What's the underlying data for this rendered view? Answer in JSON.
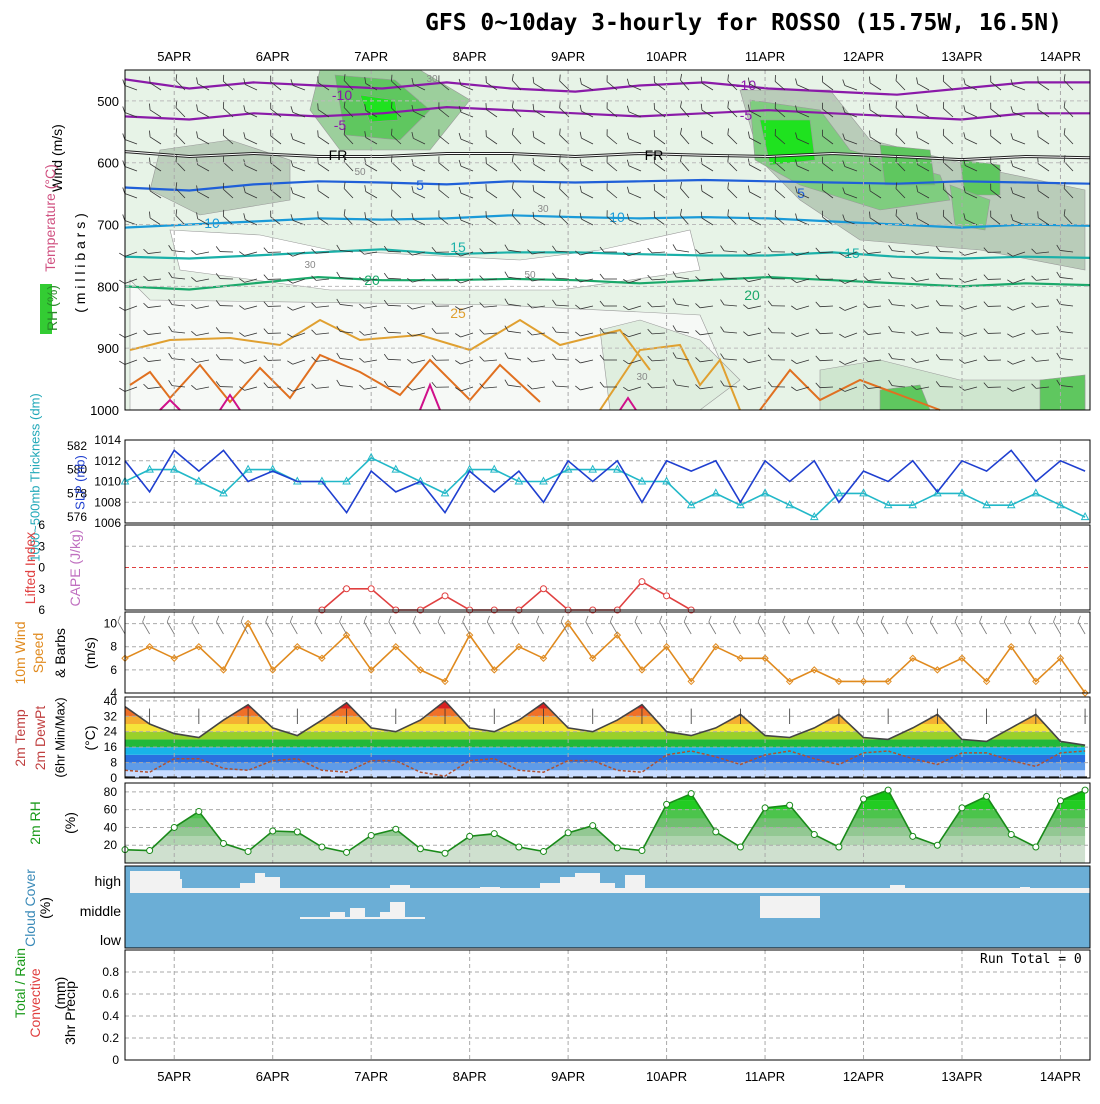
{
  "title": "GFS 0~10day 3-hourly for ROSSO (15.75W, 16.5N)",
  "run_total_text": "Run Total = 0",
  "date_labels": [
    "5APR",
    "6APR",
    "7APR",
    "8APR",
    "9APR",
    "10APR",
    "11APR",
    "12APR",
    "13APR",
    "14APR"
  ],
  "panel_labels": {
    "upper_wind": "Wind (m/s)",
    "upper_temp": "Temperature (°C)",
    "upper_rh": "RH (%)",
    "upper_pressure": "( m i l l i b a r s )",
    "thick": "1000~500mb Thickness (dm)",
    "slp": "SLP (mb)",
    "li": "Lifted Index",
    "cape": "CAPE (J/kg)",
    "wind10_a": "10m Wind",
    "wind10_b": "Speed",
    "wind10_c": "& Barbs",
    "wind10_unit": "(m/s)",
    "temp_a": "2m Temp",
    "temp_b": "2m DewPt",
    "temp_c": "(6hr Min/Max)",
    "temp_unit": "(°C)",
    "rh2": "2m RH",
    "rh2_unit": "(%)",
    "cloud": "Cloud Cover",
    "cloud_unit": "(%)",
    "precip_a": "Total / Rain",
    "precip_b": "Convective",
    "precip_c": "3hr Precip",
    "precip_unit": "(mm)"
  },
  "cloud_levels": [
    "high",
    "middle",
    "low"
  ],
  "contour_labels": {
    "temp": [
      "-10",
      "-5",
      "FR",
      "5",
      "10",
      "15",
      "20",
      "25",
      "-10",
      "-5",
      "FR",
      "5",
      "10",
      "15",
      "20"
    ],
    "rh": [
      "30",
      "50",
      "30",
      "30",
      "50",
      "30"
    ]
  },
  "colors": {
    "rh_green": "#33cc33",
    "slp_line": "#1f3fd0",
    "thick_line": "#22b8c8",
    "wind_line": "#e08a1e",
    "rh2_line": "#1a8a1a",
    "cloud_bg": "#6baed6",
    "cloud_fill": "#f2f2f2",
    "li_line": "#e04040"
  },
  "chart_data": [
    {
      "type": "heatmap",
      "name": "upper-air cross section",
      "ylabel": "( m i l l i b a r s )",
      "yticks": [
        500,
        600,
        700,
        800,
        900,
        1000
      ],
      "ylim": [
        450,
        1000
      ],
      "temp_contours": [
        {
          "label": "-10",
          "pressure": [
            465,
            480,
            470,
            475,
            480,
            470,
            480,
            485,
            475,
            470,
            480,
            485,
            490,
            480,
            470,
            470
          ]
        },
        {
          "label": "-5",
          "pressure": [
            525,
            530,
            520,
            525,
            520,
            510,
            515,
            520,
            525,
            520,
            515,
            520,
            525,
            530,
            520,
            520
          ]
        },
        {
          "label": "FR",
          "pressure": [
            582,
            590,
            585,
            590,
            590,
            585,
            585,
            590,
            585,
            588,
            590,
            585,
            590,
            595,
            590,
            592
          ]
        },
        {
          "label": "5",
          "pressure": [
            640,
            645,
            635,
            630,
            632,
            635,
            630,
            632,
            630,
            628,
            630,
            632,
            634,
            630,
            632,
            634
          ]
        },
        {
          "label": "10",
          "pressure": [
            705,
            700,
            695,
            690,
            692,
            690,
            685,
            688,
            690,
            688,
            690,
            695,
            700,
            705,
            700,
            702
          ]
        },
        {
          "label": "15",
          "pressure": [
            752,
            755,
            750,
            745,
            740,
            748,
            745,
            745,
            748,
            750,
            750,
            745,
            752,
            755,
            752,
            754
          ]
        },
        {
          "label": "20",
          "pressure": [
            800,
            805,
            795,
            785,
            790,
            790,
            788,
            790,
            795,
            790,
            785,
            790,
            795,
            800,
            795,
            798
          ]
        }
      ]
    },
    {
      "type": "line",
      "name": "thickness and SLP",
      "x_days": [
        4.5,
        4.75,
        5.0,
        5.25,
        5.5,
        5.75,
        6.0,
        6.25,
        6.5,
        6.75,
        7.0,
        7.25,
        7.5,
        7.75,
        8.0,
        8.25,
        8.5,
        8.75,
        9.0,
        9.25,
        9.5,
        9.75,
        10.0,
        10.25,
        10.5,
        10.75,
        11.0,
        11.25,
        11.5,
        11.75,
        12.0,
        12.25,
        12.5,
        12.75,
        13.0,
        13.25,
        13.5,
        13.75,
        14.0,
        14.25
      ],
      "series": [
        {
          "name": "SLP (mb)",
          "axis": "right",
          "values": [
            1012,
            1009,
            1013,
            1011,
            1013,
            1010,
            1011,
            1010,
            1010,
            1007,
            1011,
            1009,
            1010,
            1007,
            1011,
            1009,
            1011,
            1008,
            1012,
            1010,
            1012,
            1008,
            1012,
            1011,
            1012,
            1008,
            1012,
            1010,
            1012,
            1008,
            1011,
            1010,
            1012,
            1009,
            1012,
            1011,
            1013,
            1010,
            1012,
            1011
          ]
        },
        {
          "name": "1000~500mb Thickness (dm)",
          "axis": "left",
          "values": [
            579,
            580,
            580,
            579,
            578,
            580,
            580,
            579,
            579,
            579,
            581,
            580,
            579,
            578,
            580,
            580,
            579,
            579,
            580,
            580,
            580,
            579,
            579,
            577,
            578,
            577,
            578,
            577,
            576,
            578,
            578,
            577,
            577,
            578,
            578,
            577,
            577,
            578,
            577,
            576
          ]
        }
      ],
      "yticks_left": [
        576,
        578,
        580,
        582
      ],
      "yticks_right": [
        1006,
        1008,
        1010,
        1012,
        1014
      ]
    },
    {
      "type": "line",
      "name": "lifted index and CAPE",
      "ylabel": "Lifted Index",
      "yticks": [
        -6,
        -3,
        0,
        3,
        6
      ],
      "ylim": [
        -6,
        6
      ],
      "series": [
        {
          "name": "Lifted Index",
          "x_days": [
            6.5,
            6.75,
            7.0,
            7.25,
            7.5,
            7.75,
            8.0,
            8.25,
            8.5,
            8.75,
            9.0,
            9.25,
            9.5,
            9.75,
            10.0,
            10.25
          ],
          "values": [
            6,
            3,
            3,
            6,
            6,
            4,
            6,
            6,
            6,
            3,
            6,
            6,
            6,
            2,
            4,
            6
          ]
        }
      ]
    },
    {
      "type": "line",
      "name": "10m wind speed",
      "ylabel": "(m/s)",
      "yticks": [
        4,
        6,
        8,
        10
      ],
      "ylim": [
        4,
        11
      ],
      "x_days": [
        4.5,
        4.75,
        5.0,
        5.25,
        5.5,
        5.75,
        6.0,
        6.25,
        6.5,
        6.75,
        7.0,
        7.25,
        7.5,
        7.75,
        8.0,
        8.25,
        8.5,
        8.75,
        9.0,
        9.25,
        9.5,
        9.75,
        10.0,
        10.25,
        10.5,
        10.75,
        11.0,
        11.25,
        11.5,
        11.75,
        12.0,
        12.25,
        12.5,
        12.75,
        13.0,
        13.25,
        13.5,
        13.75,
        14.0,
        14.25
      ],
      "values": [
        7,
        8,
        7,
        8,
        6,
        10,
        6,
        8,
        7,
        9,
        6,
        8,
        6,
        5,
        9,
        6,
        8,
        7,
        10,
        7,
        9,
        6,
        8,
        5,
        8,
        7,
        7,
        5,
        6,
        5,
        5,
        5,
        7,
        6,
        7,
        5,
        8,
        5,
        7,
        4
      ]
    },
    {
      "type": "area",
      "name": "2m temperature and dewpoint",
      "ylabel": "(°C)",
      "yticks": [
        0,
        8,
        16,
        24,
        32,
        40
      ],
      "ylim": [
        0,
        42
      ],
      "x_days": [
        4.5,
        4.75,
        5.0,
        5.25,
        5.5,
        5.75,
        6.0,
        6.25,
        6.5,
        6.75,
        7.0,
        7.25,
        7.5,
        7.75,
        8.0,
        8.25,
        8.5,
        8.75,
        9.0,
        9.25,
        9.5,
        9.75,
        10.0,
        10.25,
        10.5,
        10.75,
        11.0,
        11.25,
        11.5,
        11.75,
        12.0,
        12.25,
        12.5,
        12.75,
        13.0,
        13.25,
        13.5,
        13.75,
        14.0,
        14.25
      ],
      "series": [
        {
          "name": "2m Temp",
          "values": [
            37,
            28,
            23,
            21,
            30,
            38,
            26,
            22,
            30,
            39,
            26,
            24,
            30,
            40,
            26,
            24,
            30,
            39,
            26,
            24,
            30,
            38,
            24,
            22,
            26,
            33,
            22,
            21,
            26,
            33,
            21,
            20,
            26,
            33,
            20,
            19,
            26,
            33,
            19,
            17
          ]
        },
        {
          "name": "2m DewPt",
          "values": [
            4,
            3,
            10,
            10,
            5,
            4,
            9,
            10,
            4,
            3,
            9,
            9,
            3,
            1,
            9,
            10,
            4,
            3,
            9,
            9,
            4,
            3,
            12,
            14,
            11,
            7,
            12,
            14,
            10,
            7,
            13,
            14,
            10,
            7,
            13,
            13,
            9,
            6,
            13,
            14
          ]
        }
      ]
    },
    {
      "type": "area",
      "name": "2m relative humidity",
      "ylabel": "(%)",
      "yticks": [
        20,
        40,
        60,
        80
      ],
      "ylim": [
        0,
        90
      ],
      "x_days": [
        4.5,
        4.75,
        5.0,
        5.25,
        5.5,
        5.75,
        6.0,
        6.25,
        6.5,
        6.75,
        7.0,
        7.25,
        7.5,
        7.75,
        8.0,
        8.25,
        8.5,
        8.75,
        9.0,
        9.25,
        9.5,
        9.75,
        10.0,
        10.25,
        10.5,
        10.75,
        11.0,
        11.25,
        11.5,
        11.75,
        12.0,
        12.25,
        12.5,
        12.75,
        13.0,
        13.25,
        13.5,
        13.75,
        14.0,
        14.25
      ],
      "values": [
        15,
        14,
        40,
        58,
        22,
        13,
        36,
        35,
        18,
        12,
        31,
        38,
        16,
        11,
        30,
        33,
        18,
        13,
        34,
        42,
        17,
        14,
        66,
        78,
        35,
        18,
        62,
        65,
        32,
        18,
        72,
        82,
        30,
        20,
        62,
        75,
        32,
        18,
        70,
        82
      ]
    },
    {
      "type": "bar",
      "name": "cloud cover",
      "categories": [
        "high",
        "middle",
        "low"
      ],
      "values": [
        35,
        12,
        0
      ]
    },
    {
      "type": "bar",
      "name": "3hr precipitation",
      "ylabel": "3hr Precip",
      "yticks": [
        0,
        0.2,
        0.4,
        0.6,
        0.8
      ],
      "ylim": [
        0,
        1
      ],
      "values": [
        0
      ]
    }
  ]
}
